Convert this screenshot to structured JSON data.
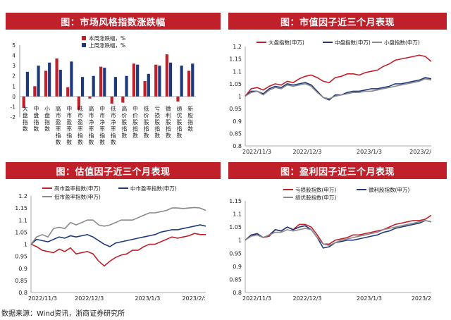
{
  "source": "数据来源：Wind资讯，浙商证券研究所",
  "chart_data": [
    {
      "type": "bar",
      "title": "图：市场风格指数涨跌幅",
      "categories": [
        "大盘指数",
        "中盘指数",
        "小盘指数",
        "高市盈率指数",
        "中市盈率指数",
        "低市盈率指数",
        "高市净率指数",
        "中市净率指数",
        "低市净率指数",
        "高价股指数",
        "中价股指数",
        "低价股指数",
        "亏损股指数",
        "微利股指数",
        "绩优股指数",
        "新股指数"
      ],
      "ylim": [
        -2,
        5
      ],
      "yticks": [
        -2,
        -1,
        0,
        1,
        2,
        3,
        4,
        5
      ],
      "series": [
        {
          "name": "本周涨跌幅，%",
          "color": "#c0202a",
          "values": [
            -1.1,
            1.0,
            2.5,
            3.7,
            0.9,
            -1.3,
            -0.2,
            2.9,
            -0.7,
            -0.6,
            3.2,
            1.5,
            3.1,
            4.1,
            -0.5,
            2.5
          ]
        },
        {
          "name": "上周涨跌幅，%",
          "color": "#1f3a7a",
          "values": [
            2.4,
            3.0,
            3.3,
            2.6,
            3.4,
            1.9,
            2.0,
            2.8,
            1.9,
            2.0,
            3.1,
            2.2,
            3.0,
            3.3,
            3.0,
            3.2
          ]
        }
      ]
    },
    {
      "type": "line",
      "title": "图：市值因子近三个月表现",
      "ylim": [
        0.8,
        1.2
      ],
      "yticks": [
        "1.2",
        "1.15",
        "1.1",
        "1.05",
        "1",
        "0.95",
        "0.9",
        "0.85",
        "0.8"
      ],
      "xticks": [
        "2022/11/3",
        "2022/12/3",
        "2023/1/3",
        "2023/2/"
      ],
      "series": [
        {
          "name": "大盘指数(申万)",
          "color": "#c0202a",
          "values": [
            1.0,
            1.03,
            1.035,
            1.025,
            1.04,
            1.05,
            1.045,
            1.06,
            1.055,
            1.07,
            1.08,
            1.085,
            1.075,
            1.06,
            1.055,
            1.075,
            1.08,
            1.09,
            1.09,
            1.085,
            1.095,
            1.1,
            1.105,
            1.12,
            1.13,
            1.145,
            1.15,
            1.155,
            1.16,
            1.165,
            1.16,
            1.14
          ]
        },
        {
          "name": "中盘指数(申万)",
          "color": "#1f3a7a",
          "values": [
            1.0,
            1.02,
            1.02,
            1.01,
            1.03,
            1.04,
            1.035,
            1.05,
            1.045,
            1.05,
            1.055,
            1.045,
            1.02,
            0.995,
            0.985,
            1.005,
            1.005,
            1.015,
            1.02,
            1.02,
            1.025,
            1.03,
            1.03,
            1.035,
            1.04,
            1.05,
            1.05,
            1.055,
            1.06,
            1.065,
            1.075,
            1.07
          ]
        },
        {
          "name": "小盘指数(申万)",
          "color": "#8a8a8a",
          "values": [
            1.0,
            1.015,
            1.02,
            1.005,
            1.025,
            1.035,
            1.03,
            1.045,
            1.04,
            1.045,
            1.05,
            1.04,
            1.015,
            0.995,
            0.99,
            1.0,
            1.005,
            1.01,
            1.015,
            1.015,
            1.02,
            1.02,
            1.025,
            1.03,
            1.035,
            1.04,
            1.045,
            1.05,
            1.055,
            1.06,
            1.07,
            1.065
          ]
        }
      ]
    },
    {
      "type": "line",
      "title": "图：估值因子近三个月表现",
      "ylim": [
        0.8,
        1.2
      ],
      "yticks": [
        "1.2",
        "1.15",
        "1.1",
        "1.05",
        "1",
        "0.95",
        "0.9",
        "0.85",
        "0.8"
      ],
      "xticks": [
        "2022/11/3",
        "2022/12/3",
        "2023/1/3",
        "2023/2/:"
      ],
      "series": [
        {
          "name": "高市盈率指数(申万)",
          "color": "#c0202a",
          "values": [
            1.0,
            0.99,
            0.975,
            0.97,
            0.965,
            0.98,
            0.97,
            0.985,
            0.96,
            0.965,
            0.97,
            0.96,
            0.93,
            0.91,
            0.93,
            0.945,
            0.955,
            0.96,
            0.975,
            0.975,
            0.99,
            1.0,
            1.0,
            1.01,
            1.02,
            1.03,
            1.025,
            1.03,
            1.035,
            1.045,
            1.04,
            1.04
          ]
        },
        {
          "name": "中市盈率指数(申万)",
          "color": "#1f3a7a",
          "values": [
            1.0,
            1.02,
            1.015,
            1.01,
            1.02,
            1.03,
            1.025,
            1.035,
            1.03,
            1.035,
            1.04,
            1.03,
            1.015,
            1.0,
            0.99,
            1.005,
            1.01,
            1.015,
            1.02,
            1.025,
            1.03,
            1.035,
            1.04,
            1.05,
            1.055,
            1.06,
            1.06,
            1.065,
            1.07,
            1.075,
            1.08,
            1.075
          ]
        },
        {
          "name": "低市盈率指数(申万)",
          "color": "#8a8a8a",
          "values": [
            1.0,
            1.03,
            1.04,
            1.03,
            1.065,
            1.07,
            1.065,
            1.09,
            1.08,
            1.09,
            1.1,
            1.1,
            1.08,
            1.075,
            1.08,
            1.09,
            1.1,
            1.1,
            1.1,
            1.11,
            1.12,
            1.13,
            1.13,
            1.135,
            1.14,
            1.15,
            1.15,
            1.148,
            1.15,
            1.152,
            1.15,
            1.14
          ]
        }
      ]
    },
    {
      "type": "line",
      "title": "图：盈利因子近三个月表现",
      "ylim": [
        0.8,
        1.15
      ],
      "yticks": [
        "1.15",
        "1.1",
        "1.05",
        "1",
        "0.95",
        "0.9",
        "0.85",
        "0.8"
      ],
      "xticks": [
        "2022/11/3",
        "2022/12/3",
        "2023/1/3",
        "2023/2"
      ],
      "series": [
        {
          "name": "亏损股指数(申万)",
          "color": "#c0202a",
          "values": [
            1.0,
            1.02,
            1.02,
            1.01,
            1.015,
            1.04,
            1.035,
            1.05,
            1.04,
            1.06,
            1.06,
            1.05,
            1.02,
            0.985,
            0.985,
            1.0,
            1.005,
            1.01,
            1.02,
            1.02,
            1.025,
            1.03,
            1.035,
            1.04,
            1.05,
            1.06,
            1.065,
            1.07,
            1.075,
            1.075,
            1.08,
            1.095
          ]
        },
        {
          "name": "微利股指数(申万)",
          "color": "#1f3a7a",
          "values": [
            1.0,
            1.02,
            1.025,
            1.01,
            1.02,
            1.04,
            1.035,
            1.05,
            1.04,
            1.05,
            1.055,
            1.04,
            1.01,
            0.97,
            0.975,
            0.99,
            0.995,
            1.0,
            1.0,
            1.005,
            1.01,
            1.015,
            1.02,
            1.03,
            1.035,
            1.045,
            1.05,
            1.055,
            1.06,
            1.065,
            1.075,
            1.07
          ]
        },
        {
          "name": "绩优股指数(申万)",
          "color": "#8a8a8a",
          "values": [
            1.0,
            1.015,
            1.02,
            1.01,
            1.02,
            1.03,
            1.03,
            1.04,
            1.035,
            1.04,
            1.045,
            1.04,
            1.01,
            0.985,
            0.98,
            0.99,
            1.0,
            1.005,
            1.01,
            1.015,
            1.02,
            1.025,
            1.03,
            1.04,
            1.045,
            1.05,
            1.055,
            1.06,
            1.065,
            1.07,
            1.075,
            1.07
          ]
        }
      ]
    }
  ]
}
